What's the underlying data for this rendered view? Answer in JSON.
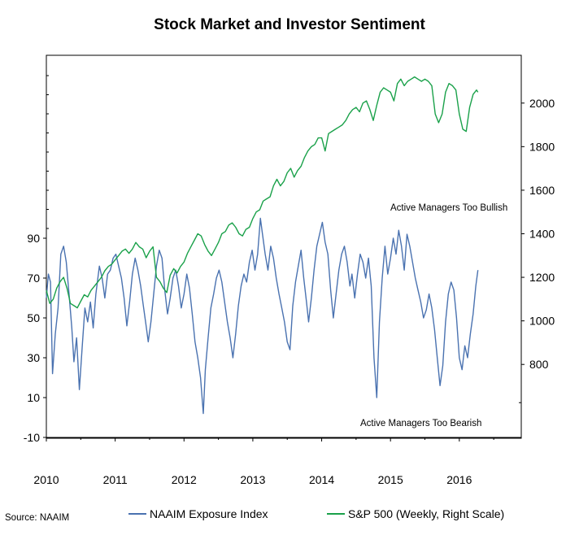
{
  "chart_data": {
    "type": "line",
    "title": "Stock Market and Investor Sentiment",
    "source": "Source: NAAIM",
    "x_ticks": [
      "2010",
      "2011",
      "2012",
      "2013",
      "2014",
      "2015",
      "2016"
    ],
    "y_left_ticks": [
      "-10",
      "10",
      "30",
      "50",
      "70",
      "90"
    ],
    "y_right_ticks": [
      "800",
      "1000",
      "1200",
      "1400",
      "1600",
      "1800",
      "2000"
    ],
    "y_left_range": [
      -10,
      110
    ],
    "y_right_range": [
      100,
      2150
    ],
    "annotations": {
      "bullish": "Active Managers Too Bullish",
      "bearish": "Active Managers Too Bearish"
    },
    "legend": [
      "NAAIM Exposure Index",
      "S&P 500 (Weekly, Right Scale)"
    ],
    "grid": false,
    "series": [
      {
        "name": "NAAIM Exposure Index",
        "axis": "left",
        "color": "#4a72b0",
        "points": [
          [
            2010.0,
            60
          ],
          [
            2010.03,
            72
          ],
          [
            2010.06,
            68
          ],
          [
            2010.09,
            22
          ],
          [
            2010.13,
            42
          ],
          [
            2010.17,
            55
          ],
          [
            2010.21,
            82
          ],
          [
            2010.25,
            86
          ],
          [
            2010.29,
            78
          ],
          [
            2010.33,
            62
          ],
          [
            2010.37,
            45
          ],
          [
            2010.4,
            28
          ],
          [
            2010.44,
            40
          ],
          [
            2010.48,
            14
          ],
          [
            2010.52,
            35
          ],
          [
            2010.56,
            55
          ],
          [
            2010.6,
            48
          ],
          [
            2010.64,
            58
          ],
          [
            2010.68,
            45
          ],
          [
            2010.72,
            62
          ],
          [
            2010.77,
            76
          ],
          [
            2010.81,
            70
          ],
          [
            2010.85,
            60
          ],
          [
            2010.89,
            72
          ],
          [
            2010.93,
            74
          ],
          [
            2010.97,
            80
          ],
          [
            2011.01,
            82
          ],
          [
            2011.05,
            76
          ],
          [
            2011.09,
            70
          ],
          [
            2011.13,
            60
          ],
          [
            2011.17,
            46
          ],
          [
            2011.21,
            58
          ],
          [
            2011.25,
            72
          ],
          [
            2011.29,
            80
          ],
          [
            2011.33,
            74
          ],
          [
            2011.37,
            66
          ],
          [
            2011.41,
            56
          ],
          [
            2011.45,
            46
          ],
          [
            2011.48,
            38
          ],
          [
            2011.52,
            48
          ],
          [
            2011.56,
            62
          ],
          [
            2011.6,
            76
          ],
          [
            2011.64,
            84
          ],
          [
            2011.68,
            80
          ],
          [
            2011.72,
            64
          ],
          [
            2011.76,
            52
          ],
          [
            2011.8,
            60
          ],
          [
            2011.84,
            70
          ],
          [
            2011.88,
            74
          ],
          [
            2011.92,
            66
          ],
          [
            2011.96,
            55
          ],
          [
            2012.0,
            62
          ],
          [
            2012.04,
            72
          ],
          [
            2012.08,
            65
          ],
          [
            2012.12,
            52
          ],
          [
            2012.16,
            38
          ],
          [
            2012.2,
            30
          ],
          [
            2012.24,
            20
          ],
          [
            2012.28,
            2
          ],
          [
            2012.31,
            24
          ],
          [
            2012.35,
            40
          ],
          [
            2012.39,
            55
          ],
          [
            2012.43,
            62
          ],
          [
            2012.47,
            70
          ],
          [
            2012.51,
            74
          ],
          [
            2012.55,
            68
          ],
          [
            2012.59,
            58
          ],
          [
            2012.63,
            48
          ],
          [
            2012.67,
            40
          ],
          [
            2012.71,
            30
          ],
          [
            2012.75,
            42
          ],
          [
            2012.79,
            56
          ],
          [
            2012.83,
            66
          ],
          [
            2012.87,
            72
          ],
          [
            2012.91,
            68
          ],
          [
            2012.95,
            78
          ],
          [
            2012.99,
            84
          ],
          [
            2013.03,
            74
          ],
          [
            2013.07,
            82
          ],
          [
            2013.11,
            100
          ],
          [
            2013.14,
            92
          ],
          [
            2013.18,
            82
          ],
          [
            2013.22,
            74
          ],
          [
            2013.26,
            86
          ],
          [
            2013.3,
            80
          ],
          [
            2013.34,
            70
          ],
          [
            2013.38,
            62
          ],
          [
            2013.42,
            55
          ],
          [
            2013.46,
            48
          ],
          [
            2013.5,
            38
          ],
          [
            2013.54,
            34
          ],
          [
            2013.58,
            56
          ],
          [
            2013.62,
            68
          ],
          [
            2013.66,
            76
          ],
          [
            2013.7,
            84
          ],
          [
            2013.74,
            70
          ],
          [
            2013.78,
            58
          ],
          [
            2013.81,
            48
          ],
          [
            2013.85,
            60
          ],
          [
            2013.89,
            74
          ],
          [
            2013.93,
            86
          ],
          [
            2013.97,
            92
          ],
          [
            2014.01,
            98
          ],
          [
            2014.05,
            88
          ],
          [
            2014.09,
            82
          ],
          [
            2014.13,
            64
          ],
          [
            2014.17,
            50
          ],
          [
            2014.21,
            62
          ],
          [
            2014.25,
            74
          ],
          [
            2014.29,
            82
          ],
          [
            2014.33,
            86
          ],
          [
            2014.37,
            78
          ],
          [
            2014.41,
            66
          ],
          [
            2014.44,
            72
          ],
          [
            2014.48,
            60
          ],
          [
            2014.52,
            72
          ],
          [
            2014.56,
            82
          ],
          [
            2014.6,
            78
          ],
          [
            2014.64,
            70
          ],
          [
            2014.68,
            80
          ],
          [
            2014.72,
            66
          ],
          [
            2014.76,
            30
          ],
          [
            2014.8,
            10
          ],
          [
            2014.84,
            48
          ],
          [
            2014.88,
            70
          ],
          [
            2014.92,
            86
          ],
          [
            2014.96,
            72
          ],
          [
            2015.0,
            80
          ],
          [
            2015.04,
            90
          ],
          [
            2015.08,
            82
          ],
          [
            2015.12,
            94
          ],
          [
            2015.16,
            86
          ],
          [
            2015.2,
            74
          ],
          [
            2015.24,
            92
          ],
          [
            2015.28,
            86
          ],
          [
            2015.32,
            78
          ],
          [
            2015.36,
            70
          ],
          [
            2015.4,
            64
          ],
          [
            2015.44,
            58
          ],
          [
            2015.48,
            50
          ],
          [
            2015.52,
            54
          ],
          [
            2015.56,
            62
          ],
          [
            2015.6,
            55
          ],
          [
            2015.64,
            44
          ],
          [
            2015.68,
            30
          ],
          [
            2015.72,
            16
          ],
          [
            2015.76,
            26
          ],
          [
            2015.8,
            48
          ],
          [
            2015.84,
            62
          ],
          [
            2015.88,
            68
          ],
          [
            2015.92,
            64
          ],
          [
            2015.96,
            50
          ],
          [
            2016.0,
            30
          ],
          [
            2016.04,
            24
          ],
          [
            2016.08,
            36
          ],
          [
            2016.12,
            30
          ],
          [
            2016.16,
            42
          ],
          [
            2016.2,
            52
          ],
          [
            2016.24,
            66
          ],
          [
            2016.27,
            74
          ]
        ]
      },
      {
        "name": "S&P 500 (Weekly, Right Scale)",
        "axis": "right",
        "color": "#1aa14a",
        "points": [
          [
            2010.0,
            1140
          ],
          [
            2010.05,
            1080
          ],
          [
            2010.1,
            1100
          ],
          [
            2010.15,
            1150
          ],
          [
            2010.2,
            1180
          ],
          [
            2010.25,
            1200
          ],
          [
            2010.3,
            1150
          ],
          [
            2010.35,
            1080
          ],
          [
            2010.4,
            1070
          ],
          [
            2010.45,
            1060
          ],
          [
            2010.5,
            1090
          ],
          [
            2010.55,
            1120
          ],
          [
            2010.6,
            1110
          ],
          [
            2010.65,
            1140
          ],
          [
            2010.7,
            1160
          ],
          [
            2010.75,
            1180
          ],
          [
            2010.8,
            1200
          ],
          [
            2010.85,
            1230
          ],
          [
            2010.9,
            1250
          ],
          [
            2010.95,
            1260
          ],
          [
            2011.0,
            1280
          ],
          [
            2011.05,
            1300
          ],
          [
            2011.1,
            1320
          ],
          [
            2011.15,
            1330
          ],
          [
            2011.2,
            1310
          ],
          [
            2011.25,
            1330
          ],
          [
            2011.3,
            1360
          ],
          [
            2011.35,
            1340
          ],
          [
            2011.4,
            1330
          ],
          [
            2011.45,
            1290
          ],
          [
            2011.5,
            1320
          ],
          [
            2011.55,
            1340
          ],
          [
            2011.6,
            1200
          ],
          [
            2011.65,
            1180
          ],
          [
            2011.7,
            1150
          ],
          [
            2011.75,
            1130
          ],
          [
            2011.8,
            1210
          ],
          [
            2011.85,
            1240
          ],
          [
            2011.9,
            1220
          ],
          [
            2011.95,
            1250
          ],
          [
            2012.0,
            1270
          ],
          [
            2012.05,
            1310
          ],
          [
            2012.1,
            1340
          ],
          [
            2012.15,
            1370
          ],
          [
            2012.2,
            1400
          ],
          [
            2012.25,
            1390
          ],
          [
            2012.3,
            1350
          ],
          [
            2012.35,
            1320
          ],
          [
            2012.4,
            1300
          ],
          [
            2012.45,
            1330
          ],
          [
            2012.5,
            1360
          ],
          [
            2012.55,
            1400
          ],
          [
            2012.6,
            1410
          ],
          [
            2012.65,
            1440
          ],
          [
            2012.7,
            1450
          ],
          [
            2012.75,
            1430
          ],
          [
            2012.8,
            1400
          ],
          [
            2012.85,
            1390
          ],
          [
            2012.9,
            1420
          ],
          [
            2012.95,
            1430
          ],
          [
            2013.0,
            1470
          ],
          [
            2013.05,
            1500
          ],
          [
            2013.1,
            1510
          ],
          [
            2013.15,
            1550
          ],
          [
            2013.2,
            1560
          ],
          [
            2013.25,
            1570
          ],
          [
            2013.3,
            1620
          ],
          [
            2013.35,
            1650
          ],
          [
            2013.4,
            1620
          ],
          [
            2013.45,
            1640
          ],
          [
            2013.5,
            1680
          ],
          [
            2013.55,
            1700
          ],
          [
            2013.6,
            1660
          ],
          [
            2013.65,
            1690
          ],
          [
            2013.7,
            1710
          ],
          [
            2013.75,
            1750
          ],
          [
            2013.8,
            1780
          ],
          [
            2013.85,
            1800
          ],
          [
            2013.9,
            1810
          ],
          [
            2013.95,
            1840
          ],
          [
            2014.0,
            1840
          ],
          [
            2014.05,
            1780
          ],
          [
            2014.1,
            1860
          ],
          [
            2014.15,
            1870
          ],
          [
            2014.2,
            1880
          ],
          [
            2014.25,
            1890
          ],
          [
            2014.3,
            1900
          ],
          [
            2014.35,
            1920
          ],
          [
            2014.4,
            1950
          ],
          [
            2014.45,
            1970
          ],
          [
            2014.5,
            1980
          ],
          [
            2014.55,
            1960
          ],
          [
            2014.6,
            2000
          ],
          [
            2014.65,
            2010
          ],
          [
            2014.7,
            1970
          ],
          [
            2014.75,
            1920
          ],
          [
            2014.8,
            1990
          ],
          [
            2014.85,
            2050
          ],
          [
            2014.9,
            2070
          ],
          [
            2014.95,
            2060
          ],
          [
            2015.0,
            2050
          ],
          [
            2015.05,
            2010
          ],
          [
            2015.1,
            2090
          ],
          [
            2015.15,
            2110
          ],
          [
            2015.2,
            2080
          ],
          [
            2015.25,
            2100
          ],
          [
            2015.3,
            2110
          ],
          [
            2015.35,
            2120
          ],
          [
            2015.4,
            2110
          ],
          [
            2015.45,
            2100
          ],
          [
            2015.5,
            2110
          ],
          [
            2015.55,
            2100
          ],
          [
            2015.6,
            2080
          ],
          [
            2015.65,
            1950
          ],
          [
            2015.7,
            1910
          ],
          [
            2015.75,
            1950
          ],
          [
            2015.8,
            2050
          ],
          [
            2015.85,
            2090
          ],
          [
            2015.9,
            2080
          ],
          [
            2015.95,
            2060
          ],
          [
            2016.0,
            1950
          ],
          [
            2016.05,
            1880
          ],
          [
            2016.1,
            1870
          ],
          [
            2016.15,
            1980
          ],
          [
            2016.2,
            2040
          ],
          [
            2016.25,
            2060
          ],
          [
            2016.27,
            2050
          ]
        ]
      }
    ]
  }
}
